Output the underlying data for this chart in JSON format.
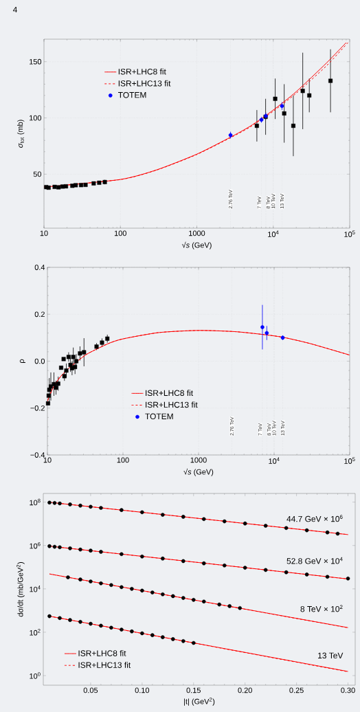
{
  "chart_data": [
    {
      "type": "line",
      "xlabel": "√*s* (GeV)",
      "ylabel": "*σ*$_{tot}$ (mb)",
      "log": "x",
      "xlim": [
        10,
        100000
      ],
      "ylim": [
        2,
        170
      ],
      "xticks": [
        10,
        100,
        1000,
        {
          "value": 10000,
          "label": "10$^{4}$"
        },
        {
          "value": 100000,
          "label": "10$^{5}$"
        }
      ],
      "yticks": [
        50,
        100,
        150
      ],
      "grid": true,
      "legend": "top left",
      "annotations": [
        "4"
      ],
      "ref_lines": [
        {
          "axis": "x",
          "value": 2760,
          "label": "2.76 TeV",
          "line_style": "dotted"
        },
        {
          "axis": "x",
          "value": 7000,
          "label": "7 TeV",
          "line_style": "dotted"
        },
        {
          "axis": "x",
          "value": 8000,
          "label": "8 TeV",
          "line_style": "dotted"
        },
        {
          "axis": "x",
          "value": 10000,
          "label": "10 TeV",
          "line_style": "dotted"
        },
        {
          "axis": "x",
          "value": 13000,
          "label": "13 TeV",
          "line_style": "dotted"
        }
      ],
      "series": [
        {
          "type": "scatter",
          "marker": "square",
          "color": "#000000",
          "x": [
            10.7,
            11.5,
            13.8,
            15.5,
            17.5,
            19.4,
            23.5,
            26,
            30.6,
            35,
            44.7,
            52.8,
            62.5,
            6100,
            7940,
            10600,
            13900,
            18300,
            24300,
            29600,
            56100
          ],
          "values": [
            38.5,
            38,
            38.7,
            38.3,
            39,
            39.2,
            39.7,
            40.2,
            40.3,
            40.5,
            41.8,
            42.4,
            43,
            93,
            101,
            117,
            104,
            93,
            124,
            120,
            133
          ],
          "errors": [
            null,
            null,
            null,
            null,
            null,
            null,
            null,
            null,
            null,
            null,
            null,
            null,
            2,
            14,
            16,
            18,
            26,
            27,
            34,
            15,
            28
          ]
        },
        {
          "name": "ISR+LHC8 fit",
          "color": "#ff0000",
          "line_style": "solid",
          "x": [
            10,
            100,
            300,
            1000,
            2760,
            5000,
            10000,
            20000,
            50000,
            90000
          ],
          "values": [
            38.5,
            45.3,
            53.9,
            67.8,
            82.9,
            92.7,
            107,
            123.4,
            149,
            167
          ]
        },
        {
          "name": "ISR+LHC13 fit",
          "color": "#ff0000",
          "line_style": "dashed",
          "x": [
            10,
            100,
            300,
            1000,
            2760,
            5000,
            10000,
            20000,
            50000,
            95000
          ],
          "values": [
            38.5,
            45.2,
            53.7,
            67.5,
            82.4,
            92,
            106,
            122,
            146.5,
            167
          ]
        },
        {
          "name": "TOTEM",
          "type": "scatter",
          "marker": "circle",
          "color": "#0000ff",
          "x": [
            2760,
            7000,
            8000,
            13000
          ],
          "values": [
            84.7,
            98.3,
            101.7,
            110.6
          ],
          "errors": [
            3,
            2.5,
            3,
            3.5
          ]
        }
      ]
    },
    {
      "type": "line",
      "xlabel": "√*s* (GeV)",
      "ylabel": "ρ",
      "log": "x",
      "xlim": [
        10,
        100000
      ],
      "ylim": [
        -0.4,
        0.4
      ],
      "xticks": [
        10,
        100,
        1000,
        {
          "value": 10000,
          "label": "10$^{4}$"
        },
        {
          "value": 100000,
          "label": "10$^{5}$"
        }
      ],
      "yticks": [
        {
          "value": -0.4,
          "label": "−0.4"
        },
        {
          "value": -0.2,
          "label": "−0.2"
        },
        {
          "value": 0,
          "label": "0.0"
        },
        0.2,
        0.4
      ],
      "grid": true,
      "legend": "bottom left",
      "ref_lines": [
        {
          "axis": "x",
          "value": 2760,
          "label": "2.76 TeV",
          "line_style": "dotted"
        },
        {
          "axis": "x",
          "value": 7000,
          "label": "7 TeV",
          "line_style": "dotted"
        },
        {
          "axis": "x",
          "value": 8000,
          "label": "8 TeV",
          "line_style": "dotted"
        },
        {
          "axis": "x",
          "value": 10000,
          "label": "10 TeV",
          "line_style": "dotted"
        },
        {
          "axis": "x",
          "value": 13000,
          "label": "13 TeV",
          "line_style": "dotted"
        }
      ],
      "series": [
        {
          "type": "scatter",
          "marker": "square",
          "color": "#000000",
          "x": [
            10.2,
            10.4,
            10.6,
            11.1,
            12.2,
            13,
            13.9,
            15.2,
            16.4,
            16.8,
            17.8,
            19.1,
            20.2,
            21.2,
            22,
            23.2,
            24.1,
            27,
            30.5,
            44.7,
            52.8,
            62.1
          ],
          "values": [
            -0.18,
            -0.147,
            -0.122,
            -0.108,
            -0.098,
            -0.113,
            -0.096,
            -0.028,
            0.009,
            -0.064,
            -0.04,
            0.018,
            -0.016,
            -0.03,
            0.018,
            -0.025,
            0,
            0.033,
            0.038,
            0.062,
            0.079,
            0.096
          ],
          "errors": [
            null,
            null,
            0.05,
            0.06,
            0.05,
            0.03,
            0.03,
            null,
            null,
            0.02,
            0.03,
            0.02,
            0.03,
            0.03,
            0.04,
            0.03,
            0.03,
            0.03,
            0.06,
            0.015,
            0.018,
            0.017
          ]
        },
        {
          "name": "ISR+LHC8 fit",
          "color": "#ff0000",
          "line_style": "solid",
          "x": [
            10,
            12,
            15,
            20,
            30,
            36,
            64,
            100,
            300,
            1000,
            3000,
            7000,
            13000,
            30000,
            100000
          ],
          "values": [
            -0.17,
            -0.11,
            -0.065,
            -0.025,
            0.02,
            0.036,
            0.075,
            0.095,
            0.122,
            0.131,
            0.126,
            0.114,
            0.102,
            0.075,
            0.026
          ]
        },
        {
          "name": "ISR+LHC13 fit",
          "color": "#ff0000",
          "line_style": "dashed",
          "x": [
            10,
            12,
            15,
            20,
            30,
            36,
            64,
            100,
            300,
            1000,
            3000,
            7000,
            13000,
            30000,
            100000
          ],
          "values": [
            -0.17,
            -0.11,
            -0.065,
            -0.025,
            0.02,
            0.036,
            0.075,
            0.095,
            0.122,
            0.131,
            0.126,
            0.114,
            0.102,
            0.075,
            0.026
          ]
        },
        {
          "name": "TOTEM",
          "type": "scatter",
          "marker": "circle",
          "color": "#0000ff",
          "x": [
            7000,
            8000,
            13000
          ],
          "values": [
            0.145,
            0.12,
            0.1
          ],
          "errors": [
            0.095,
            0.03,
            0.01
          ]
        }
      ]
    },
    {
      "type": "line",
      "xlabel": "|t| (GeV$^{2}$)",
      "ylabel": "dσ/dt (mb/GeV$^{2}$)",
      "log": "y",
      "xlim": [
        0.004,
        0.307
      ],
      "ylim": [
        0.36,
        250000000
      ],
      "xticks": [
        {
          "value": 0.05,
          "label": "0.05"
        },
        {
          "value": 0.1,
          "label": "0.10"
        },
        {
          "value": 0.15,
          "label": "0.15"
        },
        {
          "value": 0.2,
          "label": "0.20"
        },
        {
          "value": 0.25,
          "label": "0.25"
        },
        {
          "value": 0.3,
          "label": "0.30"
        }
      ],
      "yticks": [
        {
          "value": 1,
          "label": "10$^{0}$"
        },
        {
          "value": 100,
          "label": "10$^{2}$"
        },
        {
          "value": 10000,
          "label": "10$^{4}$"
        },
        {
          "value": 1000000,
          "label": "10$^{6}$"
        },
        {
          "value": 100000000,
          "label": "10$^{8}$"
        }
      ],
      "legend": "bottom left",
      "annotations": [
        "44.7 GeV × 10$^{6}$",
        "52.8 GeV × 10$^{4}$",
        "8 TeV × 10$^{2}$",
        "13 TeV"
      ],
      "series": [
        {
          "type": "scatter",
          "marker": "circle",
          "color": "#000000",
          "x": [
            0.01,
            0.015,
            0.02,
            0.03,
            0.04,
            0.05,
            0.06,
            0.08,
            0.1,
            0.12,
            0.14,
            0.16,
            0.18,
            0.2,
            0.22,
            0.24,
            0.26,
            0.28,
            0.29
          ],
          "values": [
            95000000,
            91000000,
            87000000,
            78000000,
            69000000,
            61000000,
            54000000,
            43000000,
            34000000,
            26000000,
            21000000,
            16500000,
            13000000,
            10300000,
            8100000,
            6400000,
            5000000,
            4000000,
            3500000
          ]
        },
        {
          "type": "scatter",
          "marker": "circle",
          "color": "#000000",
          "x": [
            0.01,
            0.015,
            0.02,
            0.03,
            0.04,
            0.05,
            0.06,
            0.08,
            0.1,
            0.12,
            0.14,
            0.16,
            0.18,
            0.2,
            0.22,
            0.24,
            0.26,
            0.28,
            0.3
          ],
          "values": [
            930000,
            870000,
            830000,
            740000,
            650000,
            580000,
            510000,
            400000,
            310000,
            250000,
            190000,
            150000,
            120000,
            94000,
            74000,
            58000,
            46000,
            36000,
            30000
          ]
        },
        {
          "type": "scatter",
          "marker": "circle",
          "color": "#000000",
          "x": [
            0.028,
            0.04,
            0.05,
            0.06,
            0.07,
            0.08,
            0.09,
            0.1,
            0.11,
            0.12,
            0.13,
            0.14,
            0.15,
            0.16,
            0.175,
            0.185,
            0.195
          ],
          "values": [
            34000,
            27000,
            22000,
            18000,
            15000,
            12000,
            10000,
            8300,
            6800,
            5600,
            4600,
            3800,
            3100,
            2600,
            1900,
            1600,
            1300
          ]
        },
        {
          "type": "scatter",
          "marker": "circle",
          "color": "#000000",
          "x": [
            0.01,
            0.02,
            0.03,
            0.04,
            0.05,
            0.06,
            0.07,
            0.08,
            0.09,
            0.1,
            0.11,
            0.12,
            0.13,
            0.14,
            0.15
          ],
          "values": [
            550,
            450,
            365,
            300,
            245,
            200,
            162,
            132,
            109,
            89,
            73,
            59,
            48,
            39,
            32
          ]
        },
        {
          "name": "ISR+LHC8 fit",
          "color": "#ff0000",
          "line_style": "solid",
          "x": [
            0.01,
            0.3
          ],
          "values": [
            98000000,
            3170000
          ]
        },
        {
          "color": "#ff0000",
          "line_style": "solid",
          "x": [
            0.01,
            0.3
          ],
          "values": [
            930000,
            28500
          ]
        },
        {
          "color": "#ff0000",
          "line_style": "solid",
          "x": [
            0.01,
            0.3
          ],
          "values": [
            48500,
            163
          ]
        },
        {
          "color": "#ff0000",
          "line_style": "solid",
          "x": [
            0.01,
            0.3
          ],
          "values": [
            548,
            1.55
          ]
        },
        {
          "name": "ISR+LHC13 fit",
          "color": "#ff0000",
          "line_style": "dashed",
          "x": [
            0.01,
            0.3
          ],
          "values": [
            98000000,
            3170000
          ]
        },
        {
          "color": "#ff0000",
          "line_style": "dashed",
          "x": [
            0.01,
            0.3
          ],
          "values": [
            930000,
            28500
          ]
        },
        {
          "color": "#ff0000",
          "line_style": "dashed",
          "x": [
            0.01,
            0.3
          ],
          "values": [
            48500,
            160
          ]
        },
        {
          "color": "#ff0000",
          "line_style": "dashed",
          "x": [
            0.01,
            0.3
          ],
          "values": [
            548,
            1.5
          ]
        }
      ]
    }
  ]
}
